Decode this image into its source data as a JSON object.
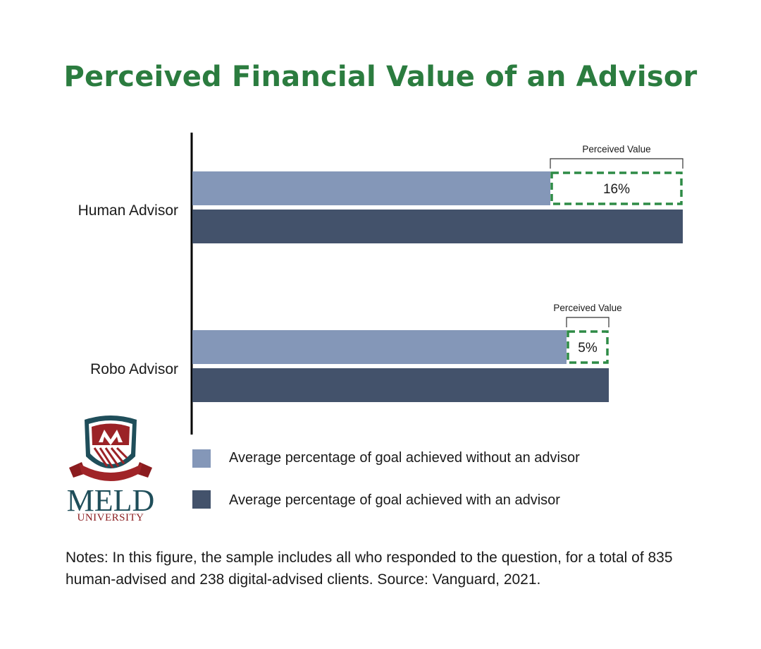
{
  "title": "Perceived Financial Value of an Advisor",
  "chart_data": {
    "type": "bar",
    "orientation": "horizontal",
    "categories": [
      "Human Advisor",
      "Robo Advisor"
    ],
    "series": [
      {
        "name": "Average percentage of goal achieved without an advisor",
        "values": [
          508,
          531
        ]
      },
      {
        "name": "Average percentage of goal achieved with an advisor",
        "values": [
          696,
          591
        ]
      }
    ],
    "annotations": [
      {
        "category": "Human Advisor",
        "label": "Perceived Value",
        "value": "16%"
      },
      {
        "category": "Robo Advisor",
        "label": "Perceived Value",
        "value": "5%"
      }
    ],
    "legend_position": "bottom",
    "grid": false,
    "colors": {
      "without": "#8497b8",
      "with": "#43526b",
      "highlight": "#2e8b46"
    }
  },
  "legend": [
    {
      "label": "Average percentage of goal achieved without an advisor",
      "color": "#8497b8"
    },
    {
      "label": "Average percentage of goal achieved with an advisor",
      "color": "#43526b"
    }
  ],
  "logo": {
    "word": "MELD",
    "sub": "UNIVERSITY"
  },
  "notes": "Notes: In this figure, the sample includes all who responded to the question, for a total of 835 human-advised and 238 digital-advised clients.  Source: Vanguard, 2021."
}
